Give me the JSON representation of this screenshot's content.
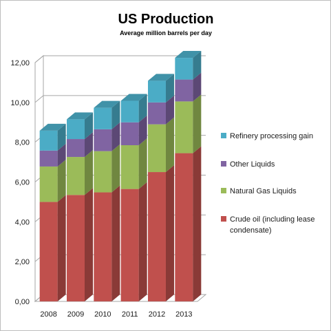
{
  "chart_data": {
    "type": "bar",
    "stacked": true,
    "style": "3d-column",
    "title": "US Production",
    "subtitle": "Average million barrels per day",
    "xlabel": "",
    "ylabel": "",
    "categories": [
      "2008",
      "2009",
      "2010",
      "2011",
      "2012",
      "2013"
    ],
    "ylim": [
      0,
      12
    ],
    "yticks": [
      "0,00",
      "2,00",
      "4,00",
      "6,00",
      "8,00",
      "10,00",
      "12,00"
    ],
    "ytick_values": [
      0,
      2,
      4,
      6,
      8,
      10,
      12
    ],
    "grid": true,
    "legend_position": "right",
    "series": [
      {
        "name": "Crude oil (including lease condensate)",
        "legend_lines": [
          "Crude oil (including lease",
          "condensate)"
        ],
        "color": "#c0504d",
        "values": [
          5.0,
          5.35,
          5.48,
          5.65,
          6.5,
          7.45
        ]
      },
      {
        "name": "Natural Gas Liquids",
        "legend_lines": [
          "Natural Gas Liquids"
        ],
        "color": "#9bbb59",
        "values": [
          1.78,
          1.91,
          2.07,
          2.2,
          2.4,
          2.6
        ]
      },
      {
        "name": "Other Liquids",
        "legend_lines": [
          "Other Liquids"
        ],
        "color": "#8064a2",
        "values": [
          0.8,
          0.9,
          1.1,
          1.15,
          1.1,
          1.1
        ]
      },
      {
        "name": "Refinery processing gain",
        "legend_lines": [
          "Refinery processing gain"
        ],
        "color": "#4bacc6",
        "values": [
          1.0,
          0.99,
          1.08,
          1.08,
          1.09,
          1.09
        ]
      }
    ]
  }
}
